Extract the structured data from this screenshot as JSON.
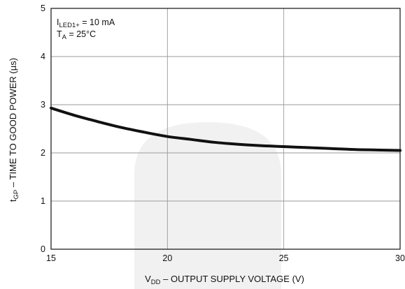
{
  "chart_data": {
    "type": "line",
    "xlabel": {
      "main": "V",
      "sub": "DD",
      "rest": " – OUTPUT SUPPLY VOLTAGE (V)"
    },
    "ylabel": {
      "main": "t",
      "sub": "GP",
      "rest": " – TIME TO GOOD POWER (µs)"
    },
    "xlim": [
      15,
      30
    ],
    "ylim": [
      0,
      5
    ],
    "xticks": [
      "15",
      "20",
      "25",
      "30"
    ],
    "yticks": [
      "0",
      "1",
      "2",
      "3",
      "4",
      "5"
    ],
    "grid": true,
    "annotations": {
      "line1": {
        "main": "I",
        "sub": "LED1+",
        "rest": " = 10 mA"
      },
      "line2": {
        "main": "T",
        "sub": "A",
        "rest": " = 25°C"
      }
    },
    "series": [
      {
        "x": [
          15,
          16,
          17,
          18,
          19,
          20,
          21,
          22,
          23,
          24,
          25,
          26,
          27,
          28,
          29,
          30
        ],
        "y": [
          2.93,
          2.78,
          2.65,
          2.53,
          2.43,
          2.34,
          2.28,
          2.22,
          2.18,
          2.15,
          2.13,
          2.11,
          2.09,
          2.07,
          2.06,
          2.05
        ]
      }
    ],
    "colors": {
      "line": "#111111",
      "grid": "#9a9a9a",
      "frame": "#111111",
      "watermark": "#f1f1f1"
    }
  }
}
